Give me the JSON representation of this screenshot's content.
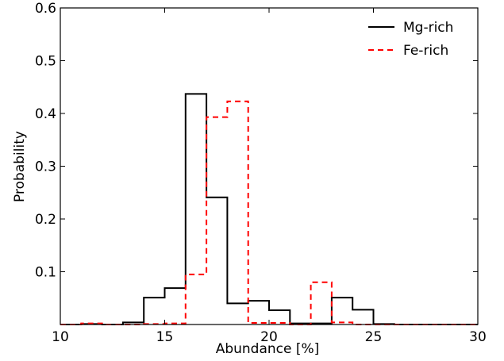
{
  "chart_data": {
    "type": "step",
    "xlabel": "Abundance [%]",
    "ylabel": "Probability",
    "xlim": [
      10,
      30
    ],
    "ylim": [
      0,
      0.6
    ],
    "xticks": [
      "10",
      "15",
      "20",
      "25",
      "30"
    ],
    "yticks": [
      "0.1",
      "0.2",
      "0.3",
      "0.4",
      "0.5",
      "0.6"
    ],
    "legend_position": "top-right",
    "bin_edges": [
      10,
      11,
      12,
      13,
      14,
      15,
      16,
      17,
      18,
      19,
      20,
      21,
      22,
      23,
      24,
      25,
      26,
      27,
      28,
      29,
      30
    ],
    "series": [
      {
        "name": "Mg-rich",
        "color": "#000000",
        "style": "solid",
        "values": [
          0.0,
          0.001,
          0.0,
          0.004,
          0.051,
          0.069,
          0.437,
          0.241,
          0.04,
          0.045,
          0.027,
          0.002,
          0.002,
          0.051,
          0.028,
          0.001,
          0.0,
          0.0,
          0.0,
          0.0
        ]
      },
      {
        "name": "Fe-rich",
        "color": "#ff0000",
        "style": "dashed",
        "values": [
          0.0,
          0.002,
          0.0,
          0.0,
          0.001,
          0.002,
          0.095,
          0.393,
          0.423,
          0.003,
          0.003,
          0.0,
          0.08,
          0.004,
          0.0,
          0.0,
          0.0,
          0.0,
          0.0,
          0.0
        ]
      }
    ]
  }
}
